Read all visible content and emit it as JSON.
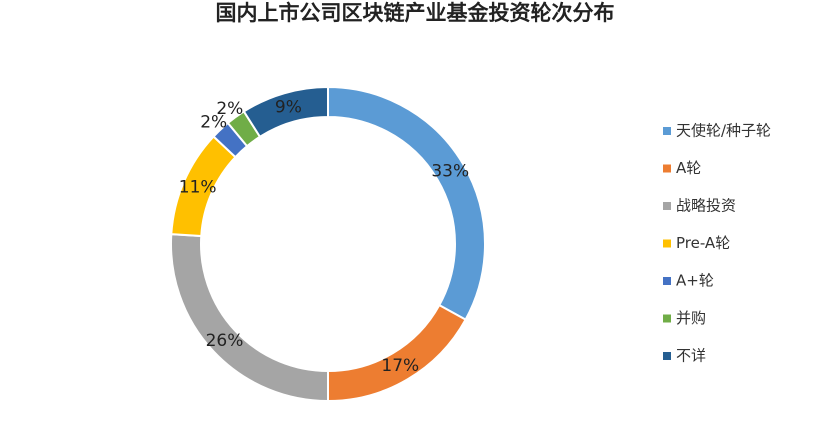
{
  "chart_data": {
    "type": "donut",
    "title": "国内上市公司区块链产业基金投资轮次分布",
    "categories": [
      "天使轮/种子轮",
      "A轮",
      "战略投资",
      "Pre-A轮",
      "A+轮",
      "并购",
      "不详"
    ],
    "values": [
      33,
      17,
      26,
      11,
      2,
      2,
      9
    ],
    "value_labels": [
      "33%",
      "17%",
      "26%",
      "11%",
      "2%",
      "2%",
      "9%"
    ],
    "colors": [
      "#5b9bd5",
      "#ed7d31",
      "#a5a5a5",
      "#ffc000",
      "#4472c4",
      "#70ad47",
      "#255e91"
    ],
    "legend": "right"
  }
}
